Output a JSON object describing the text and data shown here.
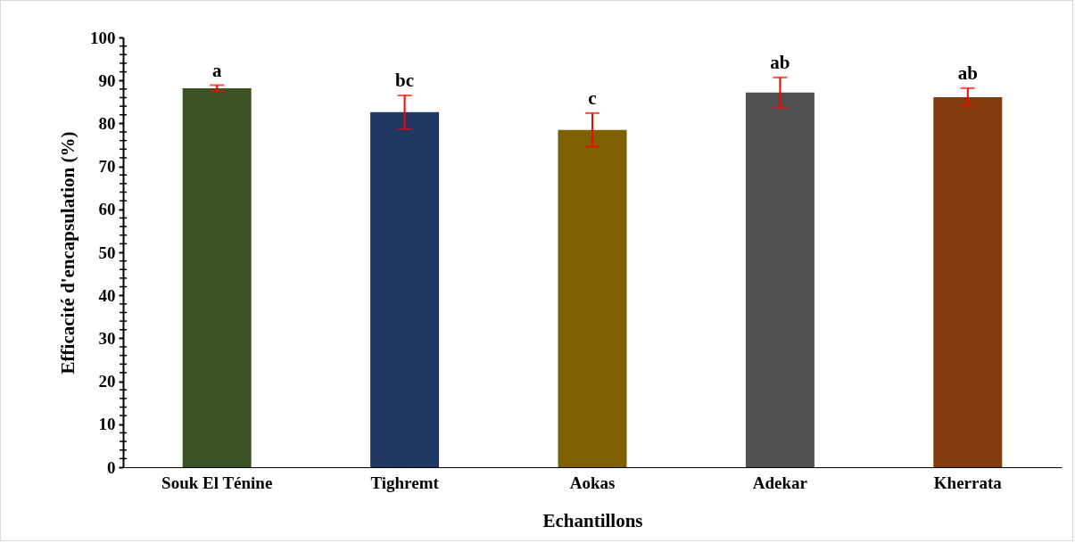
{
  "chart_data": {
    "type": "bar",
    "xlabel": "Echantillons",
    "ylabel": "Efficacité d'encapsulation (%)",
    "categories": [
      "Souk El Ténine",
      "Tighremt",
      "Aokas",
      "Adekar",
      "Kherrata"
    ],
    "values": [
      88.2,
      82.6,
      78.5,
      87.2,
      86.1
    ],
    "colors": [
      "#3b5323",
      "#203864",
      "#7f6000",
      "#505050",
      "#843c0c"
    ],
    "errors": [
      0.7,
      3.9,
      3.9,
      3.5,
      2.1
    ],
    "ylim": [
      0,
      100
    ],
    "yticks": [
      0,
      {
        "value": 2,
        "label": null
      },
      {
        "value": 4,
        "label": null
      },
      {
        "value": 6,
        "label": null
      },
      {
        "value": 8,
        "label": null
      },
      10,
      {
        "value": 12,
        "label": null
      },
      {
        "value": 14,
        "label": null
      },
      {
        "value": 16,
        "label": null
      },
      {
        "value": 18,
        "label": null
      },
      20,
      {
        "value": 22,
        "label": null
      },
      {
        "value": 24,
        "label": null
      },
      {
        "value": 26,
        "label": null
      },
      {
        "value": 28,
        "label": null
      },
      30,
      {
        "value": 32,
        "label": null
      },
      {
        "value": 34,
        "label": null
      },
      {
        "value": 36,
        "label": null
      },
      {
        "value": 38,
        "label": null
      },
      40,
      {
        "value": 42,
        "label": null
      },
      {
        "value": 44,
        "label": null
      },
      {
        "value": 46,
        "label": null
      },
      {
        "value": 48,
        "label": null
      },
      50,
      {
        "value": 52,
        "label": null
      },
      {
        "value": 54,
        "label": null
      },
      {
        "value": 56,
        "label": null
      },
      {
        "value": 58,
        "label": null
      },
      60,
      {
        "value": 62,
        "label": null
      },
      {
        "value": 64,
        "label": null
      },
      {
        "value": 66,
        "label": null
      },
      {
        "value": 68,
        "label": null
      },
      70,
      {
        "value": 72,
        "label": null
      },
      {
        "value": 74,
        "label": null
      },
      {
        "value": 76,
        "label": null
      },
      {
        "value": 78,
        "label": null
      },
      80,
      {
        "value": 82,
        "label": null
      },
      {
        "value": 84,
        "label": null
      },
      {
        "value": 86,
        "label": null
      },
      {
        "value": 88,
        "label": null
      },
      90,
      {
        "value": 92,
        "label": null
      },
      {
        "value": 94,
        "label": null
      },
      {
        "value": 96,
        "label": null
      },
      {
        "value": 98,
        "label": null
      },
      100
    ],
    "annotations": [
      "a",
      "bc",
      "c",
      "ab",
      "ab"
    ]
  }
}
